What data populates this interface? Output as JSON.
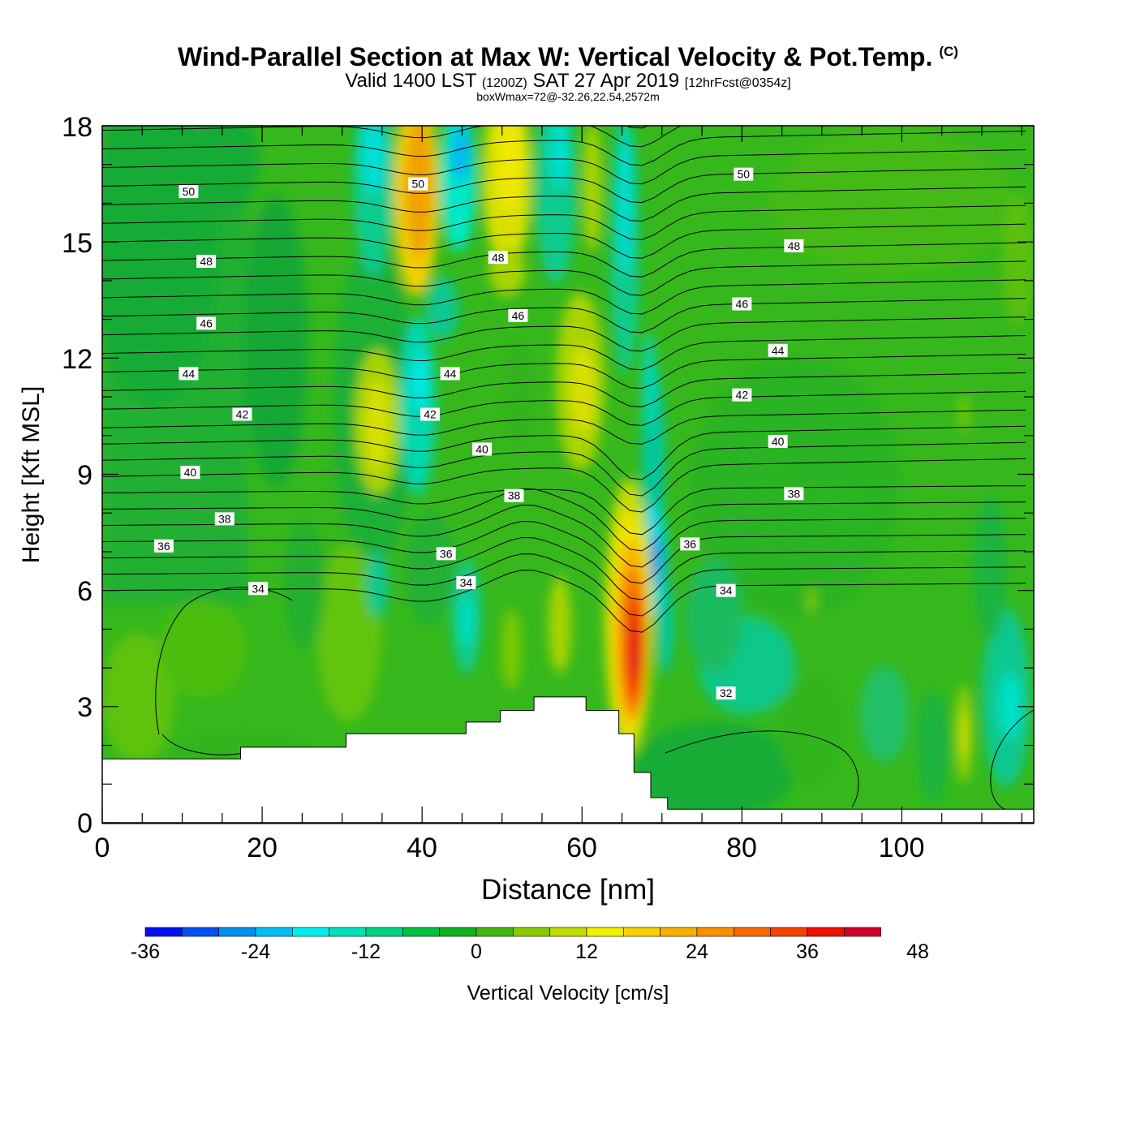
{
  "title": {
    "main": "Wind-Parallel Section at Max W: Vertical Velocity & Pot.Temp.",
    "copyright": "(C)",
    "valid_prefix": "Valid 1400 LST",
    "valid_utc": "(1200Z)",
    "valid_date": "SAT 27 Apr 2019",
    "forecast": "[12hrFcst@0354z]",
    "box_info": "boxWmax=72@-32.26,22.54,2572m"
  },
  "chart_data": {
    "type": "contour",
    "xlabel": "Distance [nm]",
    "ylabel": "Height [Kft MSL]",
    "xlim": [
      0,
      116.5
    ],
    "ylim": [
      0,
      18
    ],
    "x_ticks": [
      "0",
      "20",
      "40",
      "60",
      "80",
      "100"
    ],
    "y_ticks": [
      "0",
      "3",
      "6",
      "9",
      "12",
      "15",
      "18"
    ],
    "colorbar": {
      "label": "Vertical Velocity [cm/s]",
      "ticks": [
        "-36",
        "-24",
        "-12",
        "0",
        "12",
        "24",
        "36",
        "48"
      ],
      "colors": [
        "#0012f0",
        "#0050f5",
        "#0090ee",
        "#00bff5",
        "#00eeee",
        "#00e0b8",
        "#00d080",
        "#00c040",
        "#10b020",
        "#40b810",
        "#88cc00",
        "#c0dc00",
        "#f0f000",
        "#f8d000",
        "#f8b000",
        "#f89000",
        "#f86800",
        "#f84000",
        "#f01000",
        "#d00028"
      ]
    },
    "ridge_contour_labels": [
      {
        "text": "50",
        "x": 10.8,
        "y": 16.3
      },
      {
        "text": "50",
        "x": 39.5,
        "y": 16.5
      },
      {
        "text": "50",
        "x": 80.2,
        "y": 16.75
      },
      {
        "text": "48",
        "x": 13.0,
        "y": 14.5
      },
      {
        "text": "48",
        "x": 49.5,
        "y": 14.6
      },
      {
        "text": "48",
        "x": 86.5,
        "y": 14.9
      },
      {
        "text": "46",
        "x": 13.0,
        "y": 12.9
      },
      {
        "text": "46",
        "x": 52.0,
        "y": 13.1
      },
      {
        "text": "46",
        "x": 80.0,
        "y": 13.4
      },
      {
        "text": "44",
        "x": 10.8,
        "y": 11.6
      },
      {
        "text": "44",
        "x": 43.5,
        "y": 11.6
      },
      {
        "text": "44",
        "x": 84.5,
        "y": 12.2
      },
      {
        "text": "42",
        "x": 17.5,
        "y": 10.55
      },
      {
        "text": "42",
        "x": 41.0,
        "y": 10.55
      },
      {
        "text": "42",
        "x": 80.0,
        "y": 11.05
      },
      {
        "text": "40",
        "x": 11.0,
        "y": 9.05
      },
      {
        "text": "40",
        "x": 47.5,
        "y": 9.65
      },
      {
        "text": "40",
        "x": 84.5,
        "y": 9.85
      },
      {
        "text": "38",
        "x": 15.3,
        "y": 7.85
      },
      {
        "text": "38",
        "x": 51.5,
        "y": 8.45
      },
      {
        "text": "38",
        "x": 86.5,
        "y": 8.5
      },
      {
        "text": "36",
        "x": 7.7,
        "y": 7.15
      },
      {
        "text": "36",
        "x": 43.0,
        "y": 6.95
      },
      {
        "text": "36",
        "x": 73.5,
        "y": 7.2
      },
      {
        "text": "34",
        "x": 19.5,
        "y": 6.05
      },
      {
        "text": "34",
        "x": 45.5,
        "y": 6.2
      },
      {
        "text": "34",
        "x": 78.0,
        "y": 6.0
      },
      {
        "text": "32",
        "x": 78.0,
        "y": 3.35
      }
    ],
    "terrain_profile": [
      [
        0,
        1.65
      ],
      [
        17.3,
        1.65
      ],
      [
        17.3,
        1.95
      ],
      [
        30.5,
        1.95
      ],
      [
        30.5,
        2.3
      ],
      [
        45.5,
        2.3
      ],
      [
        45.5,
        2.6
      ],
      [
        49.8,
        2.6
      ],
      [
        49.8,
        2.9
      ],
      [
        54.0,
        2.9
      ],
      [
        54.0,
        3.25
      ],
      [
        60.5,
        3.25
      ],
      [
        60.5,
        2.9
      ],
      [
        64.6,
        2.9
      ],
      [
        64.6,
        2.3
      ],
      [
        66.5,
        2.3
      ],
      [
        66.5,
        1.3
      ],
      [
        68.6,
        1.3
      ],
      [
        68.6,
        0.65
      ],
      [
        70.7,
        0.65
      ],
      [
        70.7,
        0.35
      ],
      [
        116.5,
        0.35
      ]
    ]
  }
}
